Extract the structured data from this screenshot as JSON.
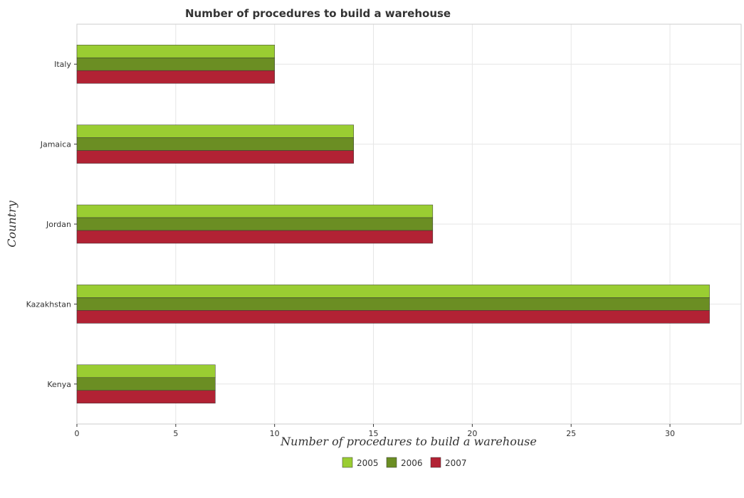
{
  "chart_data": {
    "type": "bar",
    "orientation": "horizontal",
    "title": "Number of procedures to build a warehouse",
    "xlabel": "Number of procedures to build a warehouse",
    "ylabel": "Country",
    "categories": [
      "Italy",
      "Jamaica",
      "Jordan",
      "Kazakhstan",
      "Kenya"
    ],
    "series": [
      {
        "name": "2005",
        "color": "#9acd32",
        "values": [
          10,
          14,
          18,
          32,
          7
        ]
      },
      {
        "name": "2006",
        "color": "#6b8e23",
        "values": [
          10,
          14,
          18,
          32,
          7
        ]
      },
      {
        "name": "2007",
        "color": "#b22234",
        "values": [
          10,
          14,
          18,
          32,
          7
        ]
      }
    ],
    "xlim": [
      0,
      33.6
    ],
    "xticks": [
      0,
      5,
      10,
      15,
      20,
      25,
      30
    ],
    "grid": true,
    "legend": "bottom-center"
  }
}
